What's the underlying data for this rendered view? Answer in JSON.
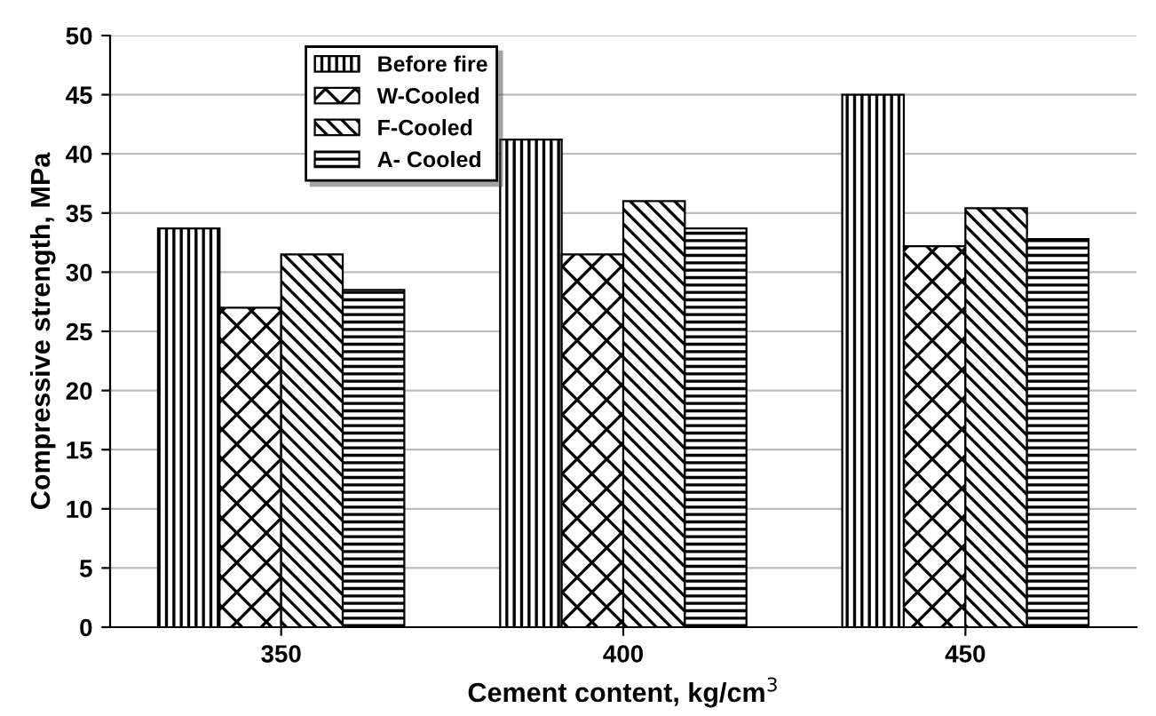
{
  "chart_data": {
    "type": "bar",
    "xlabel": "Cement content, kg/cm$^{3}$",
    "ylabel": "Compressive strength, MPa",
    "categories": [
      "350",
      "400",
      "450"
    ],
    "series": [
      {
        "name": "Before fire",
        "color": "#000000",
        "values": [
          33.7,
          41.2,
          45
        ]
      },
      {
        "name": "W-Cooled",
        "color": "#000000",
        "values": [
          27,
          31.5,
          32.2
        ]
      },
      {
        "name": "F-Cooled",
        "color": "#000000",
        "values": [
          31.5,
          36,
          35.4
        ]
      },
      {
        "name": "A- Cooled",
        "color": "#000000",
        "values": [
          28.5,
          33.7,
          32.8
        ]
      }
    ],
    "ylim": [
      0,
      50
    ],
    "yticks": [
      0,
      5,
      10,
      15,
      20,
      25,
      30,
      35,
      40,
      45,
      50
    ],
    "grid": "y",
    "legend": "top left"
  }
}
